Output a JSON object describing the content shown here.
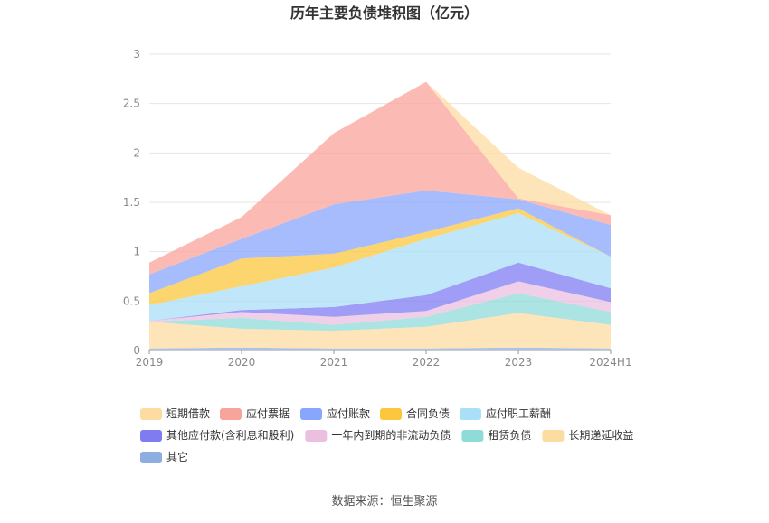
{
  "chart_data": {
    "type": "area",
    "stacked": true,
    "title": "历年主要负债堆积图（亿元）",
    "x": [
      "2019",
      "2020",
      "2021",
      "2022",
      "2023",
      "2024H1"
    ],
    "ylim": [
      0,
      3
    ],
    "yticks": [
      "0",
      "0.5",
      "1",
      "1.5",
      "2",
      "2.5",
      "3"
    ],
    "grid": true,
    "legend_position": "bottom",
    "series": [
      {
        "name": "其它",
        "color": "#8eaee0",
        "values": [
          0.02,
          0.03,
          0.02,
          0.02,
          0.03,
          0.02
        ]
      },
      {
        "name": "长期递延收益",
        "color": "#fddca1",
        "values": [
          0.27,
          0.19,
          0.18,
          0.22,
          0.35,
          0.24
        ]
      },
      {
        "name": "租赁负债",
        "color": "#8fdbd8",
        "values": [
          0.0,
          0.11,
          0.06,
          0.1,
          0.2,
          0.13
        ]
      },
      {
        "name": "一年内到期的非流动负债",
        "color": "#ebbfe0",
        "values": [
          0.01,
          0.06,
          0.08,
          0.06,
          0.12,
          0.1
        ]
      },
      {
        "name": "其他应付款(含利息和股利)",
        "color": "#7f7cf2",
        "values": [
          0.0,
          0.02,
          0.1,
          0.16,
          0.19,
          0.14
        ]
      },
      {
        "name": "应付职工薪酬",
        "color": "#a9dff7",
        "values": [
          0.16,
          0.24,
          0.4,
          0.57,
          0.5,
          0.32
        ]
      },
      {
        "name": "合同负债",
        "color": "#fcc73d",
        "values": [
          0.12,
          0.28,
          0.14,
          0.07,
          0.05,
          0.0
        ]
      },
      {
        "name": "应付账款",
        "color": "#88a6fb",
        "values": [
          0.19,
          0.2,
          0.5,
          0.42,
          0.09,
          0.32
        ]
      },
      {
        "name": "应付票据",
        "color": "#f9a49b",
        "values": [
          0.12,
          0.22,
          0.72,
          1.1,
          0.01,
          0.1
        ]
      },
      {
        "name": "短期借款",
        "color": "#fddca1",
        "values": [
          0.0,
          0.0,
          0.0,
          0.0,
          0.31,
          0.0
        ]
      }
    ],
    "legend_order": [
      "短期借款",
      "应付票据",
      "应付账款",
      "合同负债",
      "应付职工薪酬",
      "其他应付款(含利息和股利)",
      "一年内到期的非流动负债",
      "租赁负债",
      "长期递延收益",
      "其它"
    ]
  },
  "source": "数据来源：恒生聚源"
}
